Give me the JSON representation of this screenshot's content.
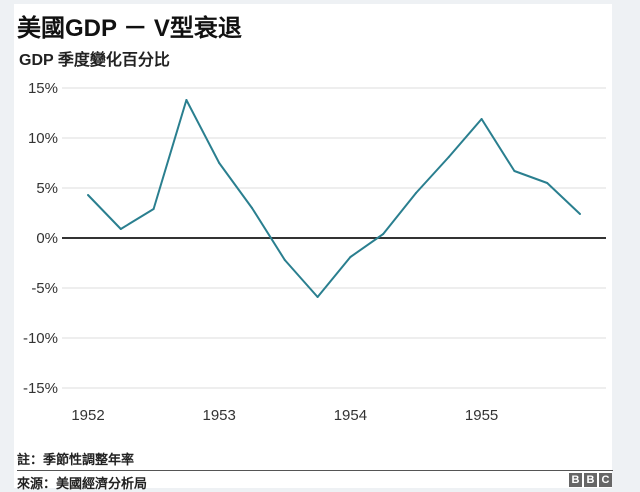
{
  "chart_data": {
    "type": "line",
    "title": "美國GDP － V型衰退",
    "subtitle": "GDP 季度變化百分比",
    "xlabel": "",
    "ylabel": "",
    "x": [
      "1952Q1",
      "1952Q2",
      "1952Q3",
      "1952Q4",
      "1953Q1",
      "1953Q2",
      "1953Q3",
      "1953Q4",
      "1954Q1",
      "1954Q2",
      "1954Q3",
      "1954Q4",
      "1955Q1",
      "1955Q2",
      "1955Q3",
      "1955Q4"
    ],
    "series": [
      {
        "name": "GDP",
        "color": "#2a7f8f",
        "values": [
          4.3,
          0.9,
          2.9,
          13.8,
          7.5,
          3.0,
          -2.2,
          -5.9,
          -1.9,
          0.4,
          4.5,
          8.1,
          11.9,
          6.7,
          5.5,
          2.4
        ]
      }
    ],
    "ylim": [
      -15,
      15
    ],
    "yticks": [
      15,
      10,
      5,
      0,
      -5,
      -10,
      -15
    ],
    "ytick_labels": [
      "15%",
      "10%",
      "5%",
      "0%",
      "-5%",
      "-10%",
      "-15%"
    ],
    "xtick_labels": [
      {
        "index": 0,
        "label": "1952"
      },
      {
        "index": 4,
        "label": "1953"
      },
      {
        "index": 8,
        "label": "1954"
      },
      {
        "index": 12,
        "label": "1955"
      }
    ],
    "grid": true,
    "legend": "none"
  },
  "footer": {
    "note": "註：季節性調整年率",
    "source": "來源：美國經濟分析局",
    "logo": [
      "B",
      "B",
      "C"
    ]
  }
}
